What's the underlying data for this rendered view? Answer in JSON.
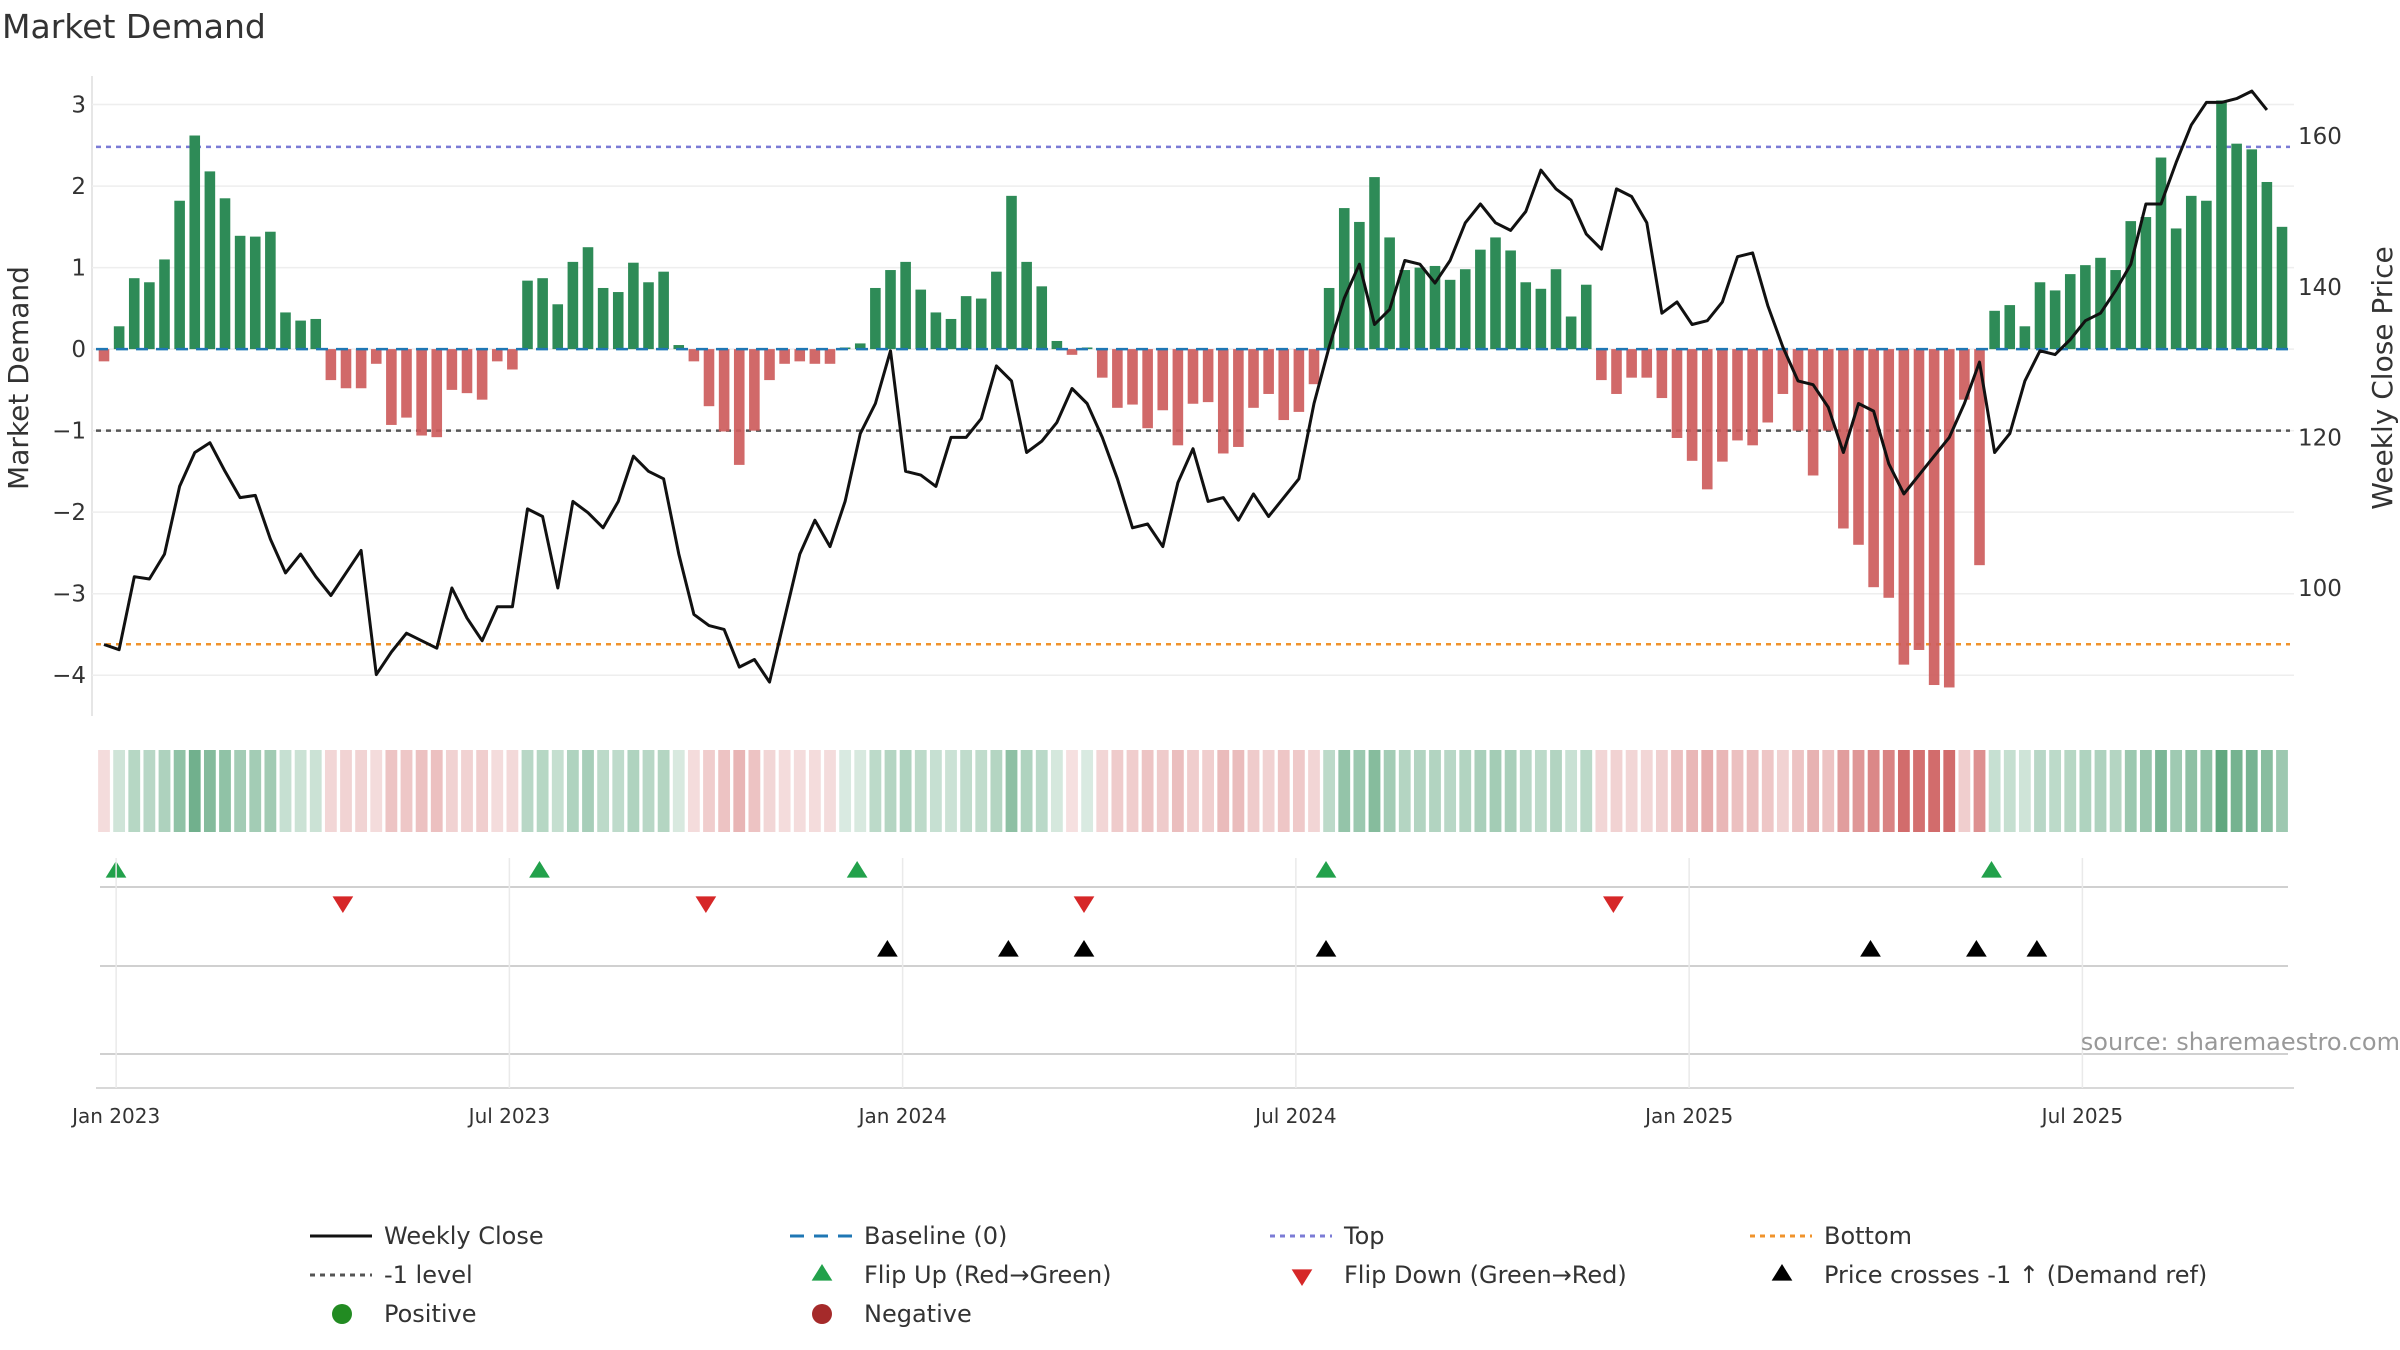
{
  "chart_data": {
    "type": "bar+line",
    "title": "Market Demand",
    "ylabel_left": "Market Demand",
    "ylabel_right": "Weekly Close Price",
    "source": "source: sharemaestro.com",
    "ylim_left": [
      -4.5,
      3.35
    ],
    "ylim_right": [
      83,
      168
    ],
    "left_ticks": [
      {
        "v": 3,
        "label": "3"
      },
      {
        "v": 2,
        "label": "2"
      },
      {
        "v": 1,
        "label": "1"
      },
      {
        "v": 0,
        "label": "0"
      },
      {
        "v": -1,
        "label": "−1"
      },
      {
        "v": -2,
        "label": "−2"
      },
      {
        "v": -3,
        "label": "−3"
      },
      {
        "v": -4,
        "label": "−4"
      }
    ],
    "right_ticks": [
      {
        "v": 160,
        "label": "160"
      },
      {
        "v": 140,
        "label": "140"
      },
      {
        "v": 120,
        "label": "120"
      },
      {
        "v": 100,
        "label": "100"
      }
    ],
    "x_ticks": [
      {
        "i": 1,
        "label": "Jan 2023"
      },
      {
        "i": 27,
        "label": "Jul 2023"
      },
      {
        "i": 53,
        "label": "Jan 2024"
      },
      {
        "i": 79,
        "label": "Jul 2024"
      },
      {
        "i": 105,
        "label": "Jan 2025"
      },
      {
        "i": 131,
        "label": "Jul 2025"
      }
    ],
    "levels": {
      "top": 2.48,
      "minus_one": -1,
      "bottom": -3.62
    },
    "colors": {
      "positive": "#2e8b57",
      "negative": "#cd5c5c",
      "price": "#111111",
      "top": "#7b7bd6",
      "bottom": "#f0932b",
      "minus_one": "#555555",
      "baseline": "#1f77b4",
      "flip_up": "#22a14b",
      "flip_down": "#d62728",
      "cross": "#000000"
    },
    "demand": [
      -0.15,
      0.28,
      0.87,
      0.82,
      1.1,
      1.82,
      2.62,
      2.18,
      1.85,
      1.39,
      1.38,
      1.44,
      0.45,
      0.35,
      0.37,
      -0.38,
      -0.48,
      -0.48,
      -0.18,
      -0.93,
      -0.84,
      -1.06,
      -1.08,
      -0.5,
      -0.54,
      -0.62,
      -0.15,
      -0.25,
      0.84,
      0.87,
      0.55,
      1.07,
      1.25,
      0.75,
      0.7,
      1.06,
      0.82,
      0.95,
      0.05,
      -0.15,
      -0.7,
      -1.01,
      -1.42,
      -1.0,
      -0.38,
      -0.18,
      -0.15,
      -0.18,
      -0.18,
      0.02,
      0.07,
      0.75,
      0.97,
      1.07,
      0.73,
      0.45,
      0.37,
      0.65,
      0.62,
      0.95,
      1.88,
      1.07,
      0.77,
      0.1,
      -0.07,
      0.02,
      -0.35,
      -0.72,
      -0.68,
      -0.97,
      -0.75,
      -1.18,
      -0.67,
      -0.65,
      -1.28,
      -1.2,
      -0.72,
      -0.55,
      -0.87,
      -0.77,
      -0.43,
      0.75,
      1.73,
      1.56,
      2.11,
      1.37,
      0.97,
      1.0,
      1.02,
      0.85,
      0.98,
      1.22,
      1.37,
      1.21,
      0.82,
      0.74,
      0.98,
      0.4,
      0.79,
      -0.38,
      -0.55,
      -0.35,
      -0.35,
      -0.6,
      -1.09,
      -1.37,
      -1.72,
      -1.38,
      -1.12,
      -1.18,
      -0.9,
      -0.55,
      -1.0,
      -1.55,
      -1.0,
      -2.2,
      -2.4,
      -2.92,
      -3.05,
      -3.87,
      -3.69,
      -4.12,
      -4.15,
      -0.62,
      -2.65,
      0.47,
      0.54,
      0.28,
      0.82,
      0.72,
      0.92,
      1.03,
      1.12,
      0.97,
      1.57,
      1.62,
      2.35,
      1.48,
      1.88,
      1.82,
      3.05,
      2.52,
      2.45,
      2.05,
      1.5
    ],
    "price": [
      92.5,
      91.8,
      101.5,
      101.2,
      104.5,
      113.5,
      118.0,
      119.3,
      115.5,
      112.0,
      112.3,
      106.5,
      102.0,
      104.5,
      101.5,
      99.0,
      102.0,
      105.0,
      88.5,
      91.5,
      94.0,
      93.0,
      92.0,
      100.0,
      96.0,
      93.0,
      97.5,
      97.5,
      110.5,
      109.5,
      100.0,
      111.5,
      110.0,
      108.0,
      111.5,
      117.5,
      115.5,
      114.5,
      104.5,
      96.5,
      95.0,
      94.5,
      89.5,
      90.5,
      87.5,
      96.0,
      104.5,
      109.0,
      105.5,
      111.5,
      120.5,
      124.5,
      131.5,
      115.5,
      115.0,
      113.5,
      120.0,
      120.0,
      122.5,
      129.5,
      127.5,
      118.0,
      119.5,
      122.0,
      126.5,
      124.5,
      120.0,
      114.5,
      108.0,
      108.5,
      105.5,
      114.0,
      118.5,
      111.5,
      112.0,
      109.0,
      112.5,
      109.5,
      112.0,
      114.5,
      124.5,
      132.0,
      138.5,
      143.0,
      135.0,
      137.0,
      143.5,
      143.0,
      140.5,
      143.5,
      148.5,
      151.0,
      148.5,
      147.5,
      150.0,
      155.5,
      153.0,
      151.5,
      147.0,
      145.0,
      153.0,
      152.0,
      148.5,
      136.5,
      138.0,
      135.0,
      135.5,
      138.0,
      144.0,
      144.5,
      137.5,
      132.0,
      127.5,
      127.0,
      124.0,
      118.0,
      124.5,
      123.5,
      116.5,
      112.5,
      115.0,
      117.5,
      120.0,
      124.5,
      130.0,
      118.0,
      120.5,
      127.5,
      131.5,
      131.0,
      133.0,
      135.5,
      136.5,
      139.5,
      143.0,
      151.0,
      151.0,
      156.5,
      161.5,
      164.5,
      164.5,
      165.0,
      166.0,
      163.5
    ],
    "flip_up_weeks": [
      0,
      28,
      49,
      80,
      124
    ],
    "flip_down_weeks": [
      15,
      39,
      64,
      99
    ],
    "cross_weeks": [
      51,
      59,
      64,
      80,
      116,
      123,
      127
    ],
    "legend": [
      {
        "key": "price_line",
        "label": "Weekly Close"
      },
      {
        "key": "baseline",
        "label": "Baseline (0)"
      },
      {
        "key": "top",
        "label": "Top"
      },
      {
        "key": "bottom",
        "label": "Bottom"
      },
      {
        "key": "minus_one",
        "label": "-1 level"
      },
      {
        "key": "flip_up",
        "label": "Flip Up (Red→Green)"
      },
      {
        "key": "flip_down",
        "label": "Flip Down (Green→Red)"
      },
      {
        "key": "cross",
        "label": "Price crosses -1 ↑ (Demand ref)"
      },
      {
        "key": "positive",
        "label": "Positive"
      },
      {
        "key": "negative",
        "label": "Negative"
      }
    ]
  }
}
